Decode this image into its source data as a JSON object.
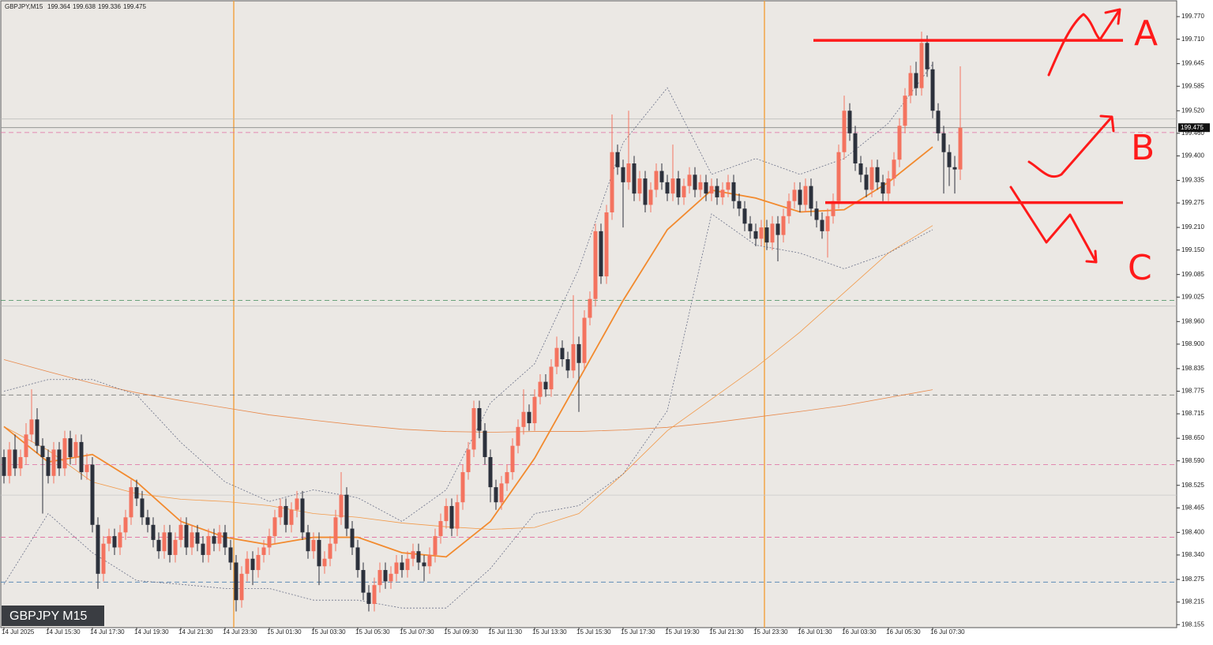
{
  "chart_data": {
    "type": "candlestick",
    "symbol": "GBPJPY,M15",
    "badge": "GBPJPY M15",
    "categories": [
      "14 Jul 2025",
      null,
      null,
      null,
      null,
      null,
      null,
      null,
      "14 Jul 15:30",
      null,
      null,
      null,
      null,
      null,
      null,
      null,
      "14 Jul 17:30",
      null,
      null,
      null,
      null,
      null,
      null,
      null,
      "14 Jul 19:30",
      null,
      null,
      null,
      null,
      null,
      null,
      null,
      "14 Jul 21:30",
      null,
      null,
      null,
      null,
      null,
      null,
      null,
      "14 Jul 23:30",
      null,
      null,
      null,
      null,
      null,
      null,
      null,
      "15 Jul 01:30",
      null,
      null,
      null,
      null,
      null,
      null,
      null,
      "15 Jul 03:30",
      null,
      null,
      null,
      null,
      null,
      null,
      null,
      "15 Jul 05:30",
      null,
      null,
      null,
      null,
      null,
      null,
      null,
      "15 Jul 07:30",
      null,
      null,
      null,
      null,
      null,
      null,
      null,
      "15 Jul 09:30",
      null,
      null,
      null,
      null,
      null,
      null,
      null,
      "15 Jul 11:30",
      null,
      null,
      null,
      null,
      null,
      null,
      null,
      "15 Jul 13:30",
      null,
      null,
      null,
      null,
      null,
      null,
      null,
      "15 Jul 15:30",
      null,
      null,
      null,
      null,
      null,
      null,
      null,
      "15 Jul 17:30",
      null,
      null,
      null,
      null,
      null,
      null,
      null,
      "15 Jul 19:30",
      null,
      null,
      null,
      null,
      null,
      null,
      null,
      "15 Jul 21:30",
      null,
      null,
      null,
      null,
      null,
      null,
      null,
      "15 Jul 23:30",
      null,
      null,
      null,
      null,
      null,
      null,
      null,
      "16 Jul 01:30",
      null,
      null,
      null,
      null,
      null,
      null,
      null,
      "16 Jul 03:30",
      null,
      null,
      null,
      null,
      null,
      null,
      null,
      "16 Jul 05:30",
      null,
      null,
      null,
      null,
      null,
      null,
      null,
      "16 Jul 07:30",
      null,
      null,
      null,
      null,
      null
    ],
    "open": [
      198.6,
      198.55,
      198.62,
      198.57,
      198.6,
      198.66,
      198.7,
      198.63,
      198.6,
      198.55,
      198.62,
      198.57,
      198.65,
      198.6,
      198.64,
      198.56,
      198.58,
      198.42,
      198.29,
      198.37,
      198.39,
      198.36,
      198.4,
      198.44,
      198.52,
      198.49,
      198.44,
      198.42,
      198.38,
      198.35,
      198.4,
      198.34,
      198.38,
      198.42,
      198.36,
      198.4,
      198.37,
      198.34,
      198.39,
      198.37,
      198.4,
      198.36,
      198.32,
      198.22,
      198.29,
      198.33,
      198.3,
      198.34,
      198.36,
      198.39,
      198.44,
      198.47,
      198.42,
      198.46,
      198.49,
      198.4,
      198.35,
      198.38,
      198.31,
      198.33,
      198.37,
      198.44,
      198.5,
      198.41,
      198.36,
      198.3,
      198.24,
      198.21,
      198.26,
      198.3,
      198.27,
      198.29,
      198.32,
      198.3,
      198.33,
      198.35,
      198.32,
      198.31,
      198.34,
      198.39,
      198.43,
      198.47,
      198.41,
      198.48,
      198.56,
      198.62,
      198.73,
      198.67,
      198.6,
      198.52,
      198.48,
      198.53,
      198.56,
      198.63,
      198.68,
      198.72,
      198.69,
      198.76,
      198.8,
      198.78,
      198.84,
      198.89,
      198.86,
      198.83,
      198.9,
      198.85,
      198.97,
      199.02,
      199.2,
      199.08,
      199.25,
      199.41,
      199.37,
      199.33,
      199.38,
      199.3,
      199.34,
      199.27,
      199.31,
      199.36,
      199.33,
      199.3,
      199.34,
      199.29,
      199.32,
      199.35,
      199.31,
      199.33,
      199.3,
      199.32,
      199.29,
      199.31,
      199.33,
      199.28,
      199.26,
      199.22,
      199.2,
      199.18,
      199.21,
      199.17,
      199.22,
      199.19,
      199.24,
      199.28,
      199.31,
      199.27,
      199.32,
      199.26,
      199.23,
      199.2,
      199.24,
      199.28,
      199.41,
      199.52,
      199.46,
      199.38,
      199.35,
      199.31,
      199.37,
      199.33,
      199.3,
      199.34,
      199.39,
      199.48,
      199.56,
      199.62,
      199.58,
      199.7,
      199.63,
      199.52,
      199.46,
      199.41,
      199.37,
      199.364
    ],
    "high": [
      198.62,
      198.64,
      198.66,
      198.62,
      198.69,
      198.78,
      198.73,
      198.65,
      198.62,
      198.64,
      198.64,
      198.67,
      198.67,
      198.66,
      198.66,
      198.61,
      198.6,
      198.44,
      198.39,
      198.41,
      198.41,
      198.42,
      198.46,
      198.54,
      198.54,
      198.51,
      198.46,
      198.44,
      198.4,
      198.42,
      198.42,
      198.4,
      198.44,
      198.44,
      198.42,
      198.42,
      198.39,
      198.41,
      198.41,
      198.42,
      198.42,
      198.38,
      198.34,
      198.31,
      198.35,
      198.35,
      198.36,
      198.38,
      198.41,
      198.46,
      198.49,
      198.49,
      198.48,
      198.51,
      198.51,
      198.42,
      198.4,
      198.4,
      198.35,
      198.39,
      198.46,
      198.56,
      198.52,
      198.43,
      198.38,
      198.32,
      198.26,
      198.28,
      198.32,
      198.32,
      198.31,
      198.34,
      198.34,
      198.35,
      198.37,
      198.37,
      198.34,
      198.36,
      198.41,
      198.45,
      198.49,
      198.49,
      198.5,
      198.58,
      198.64,
      198.75,
      198.75,
      198.69,
      198.62,
      198.54,
      198.55,
      198.58,
      198.65,
      198.7,
      198.78,
      198.74,
      198.78,
      198.82,
      198.82,
      198.86,
      198.92,
      198.91,
      198.88,
      199.03,
      198.92,
      198.99,
      199.04,
      199.22,
      199.22,
      199.27,
      199.51,
      199.43,
      199.39,
      199.52,
      199.4,
      199.36,
      199.36,
      199.33,
      199.38,
      199.38,
      199.35,
      199.43,
      199.36,
      199.34,
      199.37,
      199.37,
      199.35,
      199.35,
      199.34,
      199.34,
      199.33,
      199.35,
      199.35,
      199.3,
      199.28,
      199.24,
      199.22,
      199.23,
      199.23,
      199.24,
      199.24,
      199.26,
      199.3,
      199.33,
      199.33,
      199.34,
      199.34,
      199.28,
      199.25,
      199.26,
      199.3,
      199.43,
      199.56,
      199.54,
      199.48,
      199.4,
      199.37,
      199.39,
      199.39,
      199.35,
      199.36,
      199.41,
      199.5,
      199.58,
      199.64,
      199.65,
      199.73,
      199.72,
      199.65,
      199.54,
      199.48,
      199.43,
      199.4,
      199.638
    ],
    "low": [
      198.53,
      198.53,
      198.55,
      198.55,
      198.58,
      198.64,
      198.61,
      198.45,
      198.53,
      198.53,
      198.55,
      198.55,
      198.58,
      198.58,
      198.54,
      198.54,
      198.4,
      198.25,
      198.27,
      198.35,
      198.34,
      198.34,
      198.38,
      198.42,
      198.47,
      198.42,
      198.4,
      198.36,
      198.33,
      198.33,
      198.32,
      198.32,
      198.36,
      198.34,
      198.34,
      198.35,
      198.32,
      198.32,
      198.35,
      198.35,
      198.34,
      198.3,
      198.19,
      198.2,
      198.27,
      198.26,
      198.28,
      198.32,
      198.34,
      198.37,
      198.42,
      198.4,
      198.4,
      198.44,
      198.38,
      198.33,
      198.33,
      198.26,
      198.29,
      198.31,
      198.35,
      198.42,
      198.39,
      198.34,
      198.28,
      198.22,
      198.19,
      198.19,
      198.24,
      198.25,
      198.25,
      198.27,
      198.28,
      198.28,
      198.31,
      198.3,
      198.27,
      198.29,
      198.32,
      198.37,
      198.41,
      198.39,
      198.39,
      198.46,
      198.54,
      198.6,
      198.65,
      198.58,
      198.48,
      198.46,
      198.46,
      198.51,
      198.54,
      198.61,
      198.66,
      198.67,
      198.67,
      198.74,
      198.76,
      198.76,
      198.82,
      198.84,
      198.81,
      198.81,
      198.72,
      198.83,
      198.95,
      199.0,
      199.06,
      199.06,
      199.23,
      199.35,
      199.21,
      199.31,
      199.28,
      199.28,
      199.25,
      199.25,
      199.29,
      199.31,
      199.28,
      199.28,
      199.27,
      199.27,
      199.3,
      199.29,
      199.29,
      199.28,
      199.28,
      199.27,
      199.27,
      199.29,
      199.26,
      199.24,
      199.2,
      199.18,
      199.16,
      199.16,
      199.15,
      199.15,
      199.12,
      199.17,
      199.22,
      199.26,
      199.25,
      199.25,
      199.24,
      199.21,
      199.18,
      199.13,
      199.22,
      199.26,
      199.39,
      199.44,
      199.36,
      199.33,
      199.29,
      199.29,
      199.31,
      199.28,
      199.28,
      199.32,
      199.37,
      199.46,
      199.54,
      199.56,
      199.56,
      199.61,
      199.5,
      199.44,
      199.3,
      199.32,
      199.3,
      199.336
    ],
    "close": [
      198.55,
      198.62,
      198.57,
      198.6,
      198.66,
      198.7,
      198.63,
      198.6,
      198.55,
      198.62,
      198.57,
      198.65,
      198.6,
      198.64,
      198.56,
      198.58,
      198.42,
      198.29,
      198.37,
      198.39,
      198.36,
      198.4,
      198.44,
      198.52,
      198.49,
      198.44,
      198.42,
      198.38,
      198.35,
      198.4,
      198.34,
      198.38,
      198.42,
      198.36,
      198.4,
      198.37,
      198.34,
      198.39,
      198.37,
      198.4,
      198.36,
      198.32,
      198.22,
      198.29,
      198.33,
      198.3,
      198.34,
      198.36,
      198.39,
      198.44,
      198.47,
      198.42,
      198.46,
      198.49,
      198.4,
      198.35,
      198.38,
      198.31,
      198.33,
      198.37,
      198.44,
      198.5,
      198.41,
      198.36,
      198.3,
      198.24,
      198.21,
      198.26,
      198.3,
      198.27,
      198.29,
      198.32,
      198.3,
      198.33,
      198.35,
      198.32,
      198.31,
      198.34,
      198.39,
      198.43,
      198.47,
      198.41,
      198.48,
      198.56,
      198.62,
      198.73,
      198.67,
      198.6,
      198.52,
      198.48,
      198.53,
      198.56,
      198.63,
      198.68,
      198.72,
      198.69,
      198.76,
      198.8,
      198.78,
      198.84,
      198.89,
      198.86,
      198.83,
      198.9,
      198.85,
      198.97,
      199.02,
      199.2,
      199.08,
      199.25,
      199.41,
      199.37,
      199.33,
      199.38,
      199.3,
      199.34,
      199.27,
      199.31,
      199.36,
      199.33,
      199.3,
      199.34,
      199.29,
      199.32,
      199.35,
      199.31,
      199.33,
      199.3,
      199.32,
      199.29,
      199.31,
      199.33,
      199.28,
      199.26,
      199.22,
      199.2,
      199.18,
      199.21,
      199.17,
      199.22,
      199.19,
      199.24,
      199.28,
      199.31,
      199.27,
      199.32,
      199.26,
      199.23,
      199.2,
      199.24,
      199.28,
      199.41,
      199.52,
      199.46,
      199.38,
      199.35,
      199.31,
      199.37,
      199.33,
      199.3,
      199.34,
      199.39,
      199.48,
      199.56,
      199.62,
      199.58,
      199.7,
      199.63,
      199.52,
      199.46,
      199.41,
      199.37,
      199.364,
      199.475
    ],
    "up_color": "#f4735f",
    "down_color": "#2c313c",
    "ylim": [
      198.147,
      199.812
    ],
    "yticks": [
      {
        "value": 199.77,
        "label": "199.770"
      },
      {
        "value": 199.71,
        "label": "199.710"
      },
      199.645,
      199.585,
      {
        "value": 199.52,
        "label": "199.520"
      },
      {
        "value": 199.46,
        "label": "199.460"
      },
      {
        "value": 199.4,
        "label": "199.400"
      },
      199.335,
      199.275,
      {
        "value": 199.21,
        "label": "199.210"
      },
      {
        "value": 199.15,
        "label": "199.150"
      },
      199.085,
      199.025,
      {
        "value": 198.96,
        "label": "198.960"
      },
      {
        "value": 198.9,
        "label": "198.900"
      },
      198.835,
      198.775,
      198.715,
      {
        "value": 198.65,
        "label": "198.650"
      },
      {
        "value": 198.59,
        "label": "198.590"
      },
      198.525,
      198.465,
      {
        "value": 198.4,
        "label": "198.400"
      },
      {
        "value": 198.34,
        "label": "198.340"
      },
      198.275,
      198.215,
      198.155
    ],
    "indicators": [
      {
        "color": "#e8884a",
        "width": 0.8,
        "style": "solid",
        "values": [
          198.859,
          198.827,
          198.796,
          198.771,
          198.75,
          198.731,
          198.712,
          198.698,
          198.685,
          198.674,
          198.668,
          198.666,
          198.668,
          198.668,
          198.672,
          198.679,
          198.691,
          198.706,
          198.721,
          198.737,
          198.758,
          198.779
        ]
      },
      {
        "color": "#f29a4a",
        "width": 0.8,
        "style": "solid",
        "values": [
          198.681,
          198.618,
          198.534,
          198.503,
          198.488,
          198.482,
          198.471,
          198.45,
          198.44,
          198.425,
          198.415,
          198.408,
          198.413,
          198.45,
          198.555,
          198.67,
          198.754,
          198.838,
          198.932,
          199.037,
          199.142,
          199.215
        ]
      },
      {
        "color": "#f28a2e",
        "width": 1.8,
        "style": "solid",
        "values": [
          198.681,
          198.587,
          198.607,
          198.534,
          198.429,
          198.387,
          198.367,
          198.387,
          198.387,
          198.346,
          198.335,
          198.429,
          198.597,
          198.806,
          199.016,
          199.204,
          199.309,
          199.288,
          199.251,
          199.257,
          199.33,
          199.424
        ]
      },
      {
        "color": "#6a7088",
        "width": 0.8,
        "style": "dotted",
        "values": [
          198.775,
          198.806,
          198.806,
          198.765,
          198.639,
          198.534,
          198.482,
          198.513,
          198.492,
          198.429,
          198.513,
          198.744,
          198.848,
          199.1,
          199.435,
          199.581,
          199.351,
          199.393,
          199.351,
          199.393,
          199.487,
          199.644
        ]
      },
      {
        "color": "#6a7088",
        "width": 0.8,
        "style": "dotted",
        "values": [
          198.262,
          198.45,
          198.346,
          198.272,
          198.262,
          198.251,
          198.251,
          198.22,
          198.22,
          198.199,
          198.199,
          198.304,
          198.45,
          198.471,
          198.555,
          198.723,
          199.246,
          199.163,
          199.142,
          199.1,
          199.142,
          199.204
        ]
      }
    ],
    "levels": [
      {
        "value": 199.498,
        "color": "#b8b8b8",
        "style": "solid",
        "width": 0.8
      },
      {
        "value": 199.462,
        "color": "#e06aa0",
        "style": "dashed",
        "width": 0.8
      },
      {
        "value": 199.016,
        "color": "#3f8a5a",
        "style": "dashed",
        "width": 0.8
      },
      {
        "value": 199.001,
        "color": "#b8b8b8",
        "style": "solid",
        "width": 0.8
      },
      {
        "value": 198.765,
        "color": "#7a7a7a",
        "style": "dashed",
        "width": 0.8
      },
      {
        "value": 198.58,
        "color": "#e06aa0",
        "style": "dashed",
        "width": 0.8
      },
      {
        "value": 198.499,
        "color": "#c8c8c8",
        "style": "solid",
        "width": 0.8
      },
      {
        "value": 198.387,
        "color": "#e06aa0",
        "style": "dashed",
        "width": 0.8
      },
      {
        "value": 198.268,
        "color": "#4a7db0",
        "style": "dashed",
        "width": 0.8
      }
    ],
    "zones": [
      {
        "value": 199.707,
        "color": "#ff1a1a",
        "width": 3.5
      },
      {
        "value": 199.276,
        "color": "#ff1a1a",
        "width": 3.5
      }
    ],
    "annotations": [
      "A",
      "B",
      "C"
    ]
  }
}
